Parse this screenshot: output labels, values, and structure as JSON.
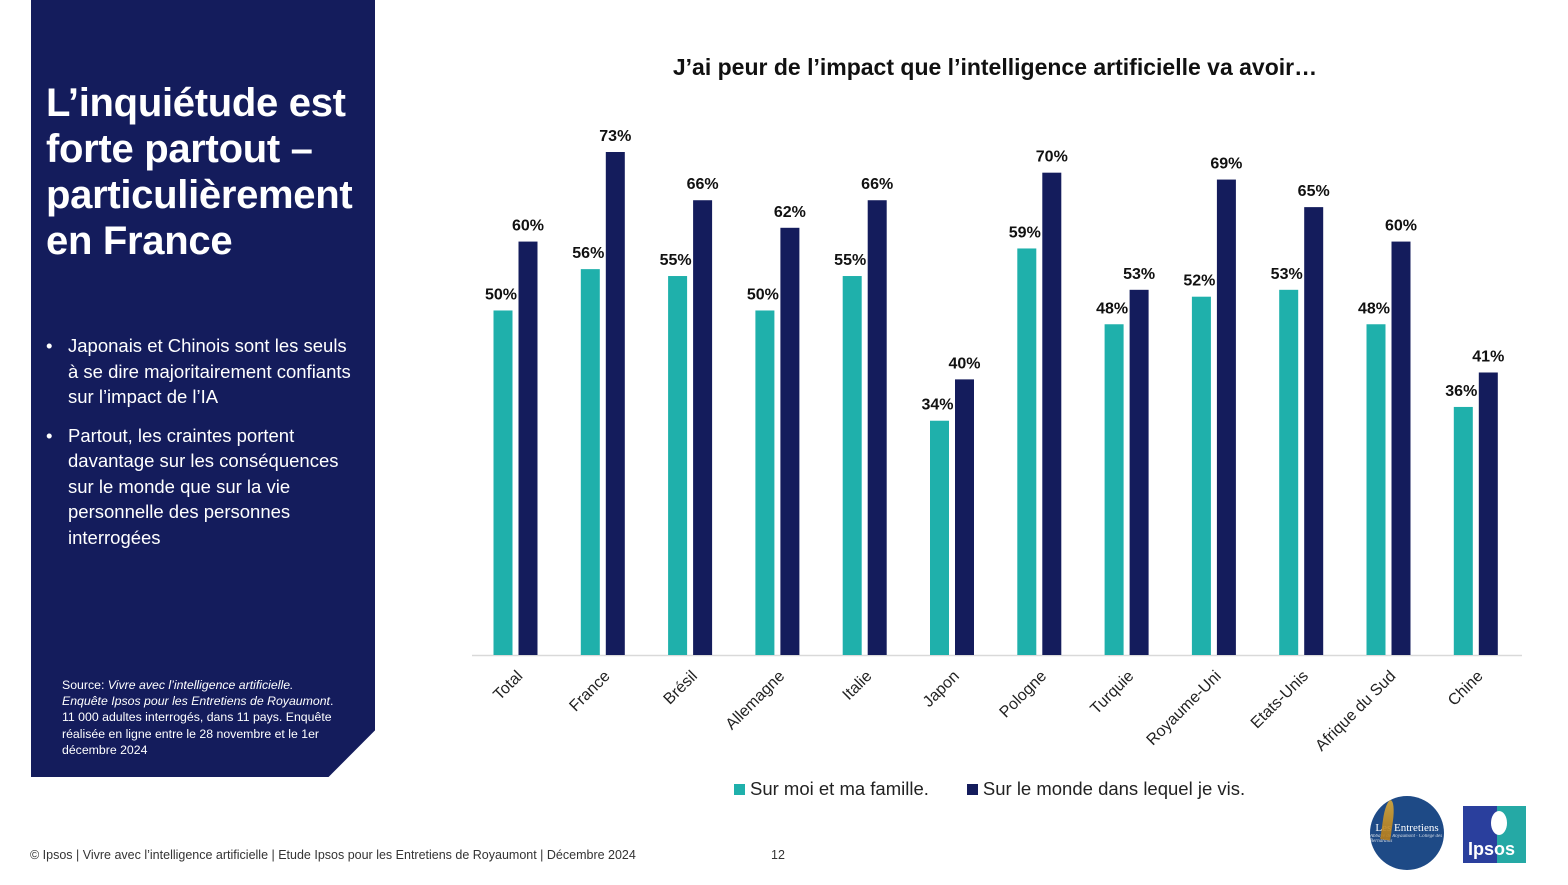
{
  "panel": {
    "title": "L’inquiétude est forte partout – particulièrement en France",
    "bullets": [
      "Japonais et Chinois sont les seuls à se dire majoritairement confiants sur l’impact de l’IA",
      "Partout, les craintes portent davantage sur les conséquences sur le monde que sur la vie personnelle des personnes interrogées"
    ],
    "source_label": "Source: ",
    "source_title": "Vivre avec l’intelligence artificielle. Enquête Ipsos pour les Entretiens de Royaumont",
    "source_rest": ". 11 000 adultes interrogés, dans 11 pays. Enquête réalisée en ligne entre le 28 novembre et le 1er décembre 2024"
  },
  "footer": {
    "text": "© Ipsos | Vivre avec l’intelligence artificielle | Etude Ipsos pour les Entretiens de Royaumont | Décembre 2024",
    "page": "12"
  },
  "logos": {
    "entretiens": "Les Entretiens",
    "entretiens_sub": "Abbaye de Royaumont · Collège des Bernardins",
    "ipsos": "Ipsos"
  },
  "colors": {
    "panel": "#141c5c",
    "series1": "#1fb0ab",
    "series2": "#141c5c"
  },
  "chart_data": {
    "type": "bar",
    "title": "J’ai peur de l’impact que l’intelligence artificielle va avoir…",
    "xlabel": "",
    "ylabel": "",
    "ylim": [
      0,
      80
    ],
    "grid": false,
    "legend_position": "bottom",
    "categories": [
      "Total",
      "France",
      "Brésil",
      "Allemagne",
      "Italie",
      "Japon",
      "Pologne",
      "Turquie",
      "Royaume-Uni",
      "Etats-Unis",
      "Afrique du Sud",
      "Chine"
    ],
    "series": [
      {
        "name": "Sur moi et ma famille.",
        "color": "#1fb0ab",
        "values": [
          50,
          56,
          55,
          50,
          55,
          34,
          59,
          48,
          52,
          53,
          48,
          36
        ]
      },
      {
        "name": "Sur le monde dans lequel je vis.",
        "color": "#141c5c",
        "values": [
          60,
          73,
          66,
          62,
          66,
          40,
          70,
          53,
          69,
          65,
          60,
          41
        ]
      }
    ],
    "value_suffix": "%"
  }
}
